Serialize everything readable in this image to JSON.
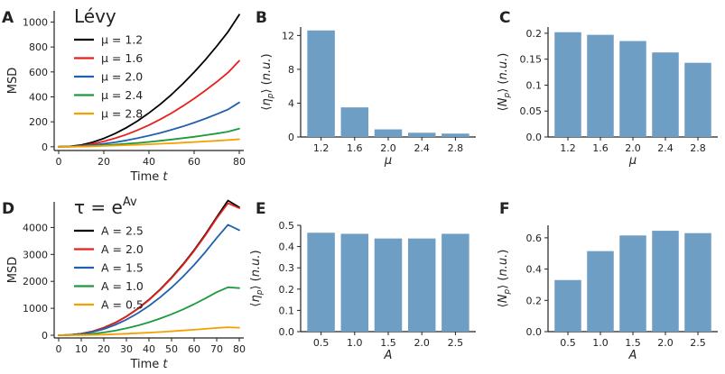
{
  "colors": {
    "bar": "#6f9ec4",
    "axis": "#222222",
    "series": [
      "#000000",
      "#e8201c",
      "#2060ae",
      "#1c9a3c",
      "#f5a000"
    ]
  },
  "chart_data": [
    {
      "id": "A",
      "panel_label": "A",
      "type": "line",
      "title": "Lévy",
      "xlabel": "Time t",
      "ylabel": "MSD",
      "xlim": [
        -2,
        82
      ],
      "ylim": [
        -30,
        1090
      ],
      "xticks": [
        0,
        20,
        40,
        60,
        80
      ],
      "xtick_labels": [
        "0",
        "20",
        "40",
        "60",
        "80"
      ],
      "yticks": [
        0,
        200,
        400,
        600,
        800,
        1000
      ],
      "ytick_labels": [
        "0",
        "200",
        "400",
        "600",
        "800",
        "1000"
      ],
      "legend_position": "top-left",
      "x": [
        0,
        5,
        10,
        15,
        20,
        25,
        30,
        35,
        40,
        45,
        50,
        55,
        60,
        65,
        70,
        75,
        80
      ],
      "series": [
        {
          "name": "μ = 1.2",
          "values": [
            0,
            3,
            14,
            36,
            67,
            106,
            153,
            208,
            271,
            341,
            419,
            505,
            598,
            698,
            806,
            921,
            1060
          ]
        },
        {
          "name": "μ = 1.6",
          "values": [
            0,
            2,
            9,
            23,
            43,
            68,
            98,
            134,
            174,
            220,
            270,
            326,
            386,
            451,
            520,
            594,
            690
          ]
        },
        {
          "name": "μ = 2.0",
          "values": [
            0,
            1,
            6,
            13,
            24,
            36,
            51,
            69,
            89,
            111,
            136,
            163,
            193,
            226,
            261,
            299,
            355
          ]
        },
        {
          "name": "μ = 2.4",
          "values": [
            0,
            1,
            3,
            7,
            12,
            18,
            24,
            31,
            39,
            48,
            58,
            69,
            80,
            93,
            106,
            121,
            145
          ]
        },
        {
          "name": "μ = 2.8",
          "values": [
            0,
            0.5,
            2,
            4,
            7,
            10,
            13,
            16,
            20,
            24,
            28,
            33,
            38,
            43,
            48,
            54,
            60
          ]
        }
      ]
    },
    {
      "id": "B",
      "panel_label": "B",
      "type": "bar",
      "xlabel": "μ",
      "ylabel": "⟨η_p⟩ (n.u.)",
      "ylim": [
        0,
        13
      ],
      "yticks": [
        0,
        4,
        8,
        12
      ],
      "ytick_labels": [
        "0",
        "4",
        "8",
        "12"
      ],
      "categories": [
        "1.2",
        "1.6",
        "2.0",
        "2.4",
        "2.8"
      ],
      "values": [
        12.6,
        3.5,
        0.9,
        0.5,
        0.4
      ]
    },
    {
      "id": "C",
      "panel_label": "C",
      "type": "bar",
      "xlabel": "μ",
      "ylabel": "⟨N_p⟩ (n.u.)",
      "ylim": [
        0,
        0.212
      ],
      "yticks": [
        0,
        0.05,
        0.1,
        0.15,
        0.2
      ],
      "ytick_labels": [
        "0.0",
        "0.05",
        "0.1",
        "0.15",
        "0.2"
      ],
      "categories": [
        "1.2",
        "1.6",
        "2.0",
        "2.4",
        "2.8"
      ],
      "values": [
        0.202,
        0.197,
        0.185,
        0.163,
        0.143
      ]
    },
    {
      "id": "D",
      "panel_label": "D",
      "type": "line",
      "title": "τ = e^(Av)",
      "xlabel": "Time t",
      "ylabel": "MSD",
      "xlim": [
        -2,
        82
      ],
      "ylim": [
        -100,
        4950
      ],
      "xticks": [
        0,
        10,
        20,
        30,
        40,
        50,
        60,
        70,
        80
      ],
      "xtick_labels": [
        "0",
        "10",
        "20",
        "30",
        "40",
        "50",
        "60",
        "70",
        "80"
      ],
      "yticks": [
        0,
        1000,
        2000,
        3000,
        4000
      ],
      "ytick_labels": [
        "0",
        "1000",
        "2000",
        "3000",
        "4000"
      ],
      "legend_position": "top-left",
      "x": [
        0,
        5,
        10,
        15,
        20,
        25,
        30,
        35,
        40,
        45,
        50,
        55,
        60,
        65,
        70,
        75,
        80
      ],
      "series": [
        {
          "name": "A = 2.5",
          "values": [
            0,
            12,
            57,
            145,
            280,
            465,
            700,
            985,
            1320,
            1705,
            2140,
            2625,
            3160,
            3745,
            4380,
            5000,
            4750
          ]
        },
        {
          "name": "A = 2.0",
          "values": [
            0,
            12,
            56,
            143,
            277,
            460,
            693,
            975,
            1307,
            1690,
            2120,
            2600,
            3130,
            3710,
            4340,
            4900,
            4720
          ]
        },
        {
          "name": "A = 1.5",
          "values": [
            0,
            10,
            47,
            120,
            232,
            385,
            580,
            815,
            1090,
            1410,
            1770,
            2170,
            2610,
            3090,
            3610,
            4100,
            3900
          ]
        },
        {
          "name": "A = 1.0",
          "values": [
            0,
            5,
            22,
            55,
            105,
            172,
            257,
            360,
            482,
            622,
            781,
            958,
            1153,
            1367,
            1600,
            1780,
            1750
          ]
        },
        {
          "name": "A = 0.5",
          "values": [
            0,
            2,
            6,
            14,
            25,
            40,
            57,
            76,
            98,
            122,
            148,
            176,
            206,
            238,
            272,
            295,
            280
          ]
        }
      ]
    },
    {
      "id": "E",
      "panel_label": "E",
      "type": "bar",
      "xlabel": "A",
      "ylabel": "⟨η_p⟩ (n.u.)",
      "ylim": [
        0,
        0.5
      ],
      "yticks": [
        0,
        0.1,
        0.2,
        0.3,
        0.4,
        0.5
      ],
      "ytick_labels": [
        "0.0",
        "0.1",
        "0.2",
        "0.3",
        "0.4",
        "0.5"
      ],
      "categories": [
        "0.5",
        "1.0",
        "1.5",
        "2.0",
        "2.5"
      ],
      "values": [
        0.465,
        0.46,
        0.438,
        0.438,
        0.46
      ]
    },
    {
      "id": "F",
      "panel_label": "F",
      "type": "bar",
      "xlabel": "A",
      "ylabel": "⟨N_p⟩ (n.u.)",
      "ylim": [
        0,
        0.68
      ],
      "yticks": [
        0,
        0.2,
        0.4,
        0.6
      ],
      "ytick_labels": [
        "0.0",
        "0.2",
        "0.4",
        "0.6"
      ],
      "categories": [
        "0.5",
        "1.0",
        "1.5",
        "2.0",
        "2.5"
      ],
      "values": [
        0.33,
        0.515,
        0.615,
        0.645,
        0.63
      ]
    }
  ]
}
